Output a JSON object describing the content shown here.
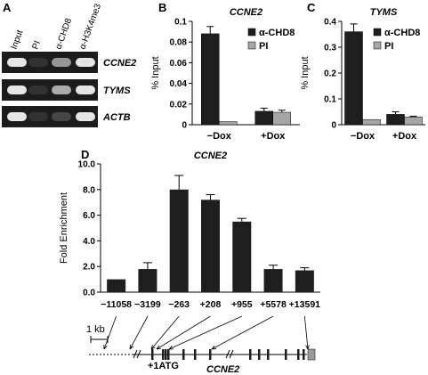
{
  "panel_labels": {
    "a": "A",
    "b": "B",
    "c": "C",
    "d": "D"
  },
  "gel": {
    "lanes": [
      "Input",
      "PI",
      "α-CHD8",
      "α-H3K4me3"
    ],
    "rows": [
      {
        "gene": "CCNE2",
        "intensity": [
          0.95,
          0.05,
          0.55,
          0.95
        ]
      },
      {
        "gene": "TYMS",
        "intensity": [
          0.95,
          0.05,
          0.65,
          0.95
        ]
      },
      {
        "gene": "ACTB",
        "intensity": [
          0.95,
          0.05,
          0.15,
          0.95
        ]
      }
    ]
  },
  "colors": {
    "chd8": "#1e1e1e",
    "pi": "#a6a6a6",
    "fold": "#1e1e1e",
    "exon": "#1e1e1e",
    "last_exon": "#9a9a9a"
  },
  "chart_data": [
    {
      "id": "B",
      "type": "bar",
      "title": "CCNE2",
      "ylabel": "% Input",
      "xlabel": "",
      "categories": [
        "−Dox",
        "+Dox"
      ],
      "ylim": [
        0,
        0.1
      ],
      "yticks": [
        "0",
        "0.02",
        "0.04",
        "0.06",
        "0.08",
        "0.1"
      ],
      "legend": "top-right",
      "series": [
        {
          "name": "α-CHD8",
          "values": [
            0.088,
            0.013
          ],
          "errors": [
            0.007,
            0.003
          ]
        },
        {
          "name": "PI",
          "values": [
            0.003,
            0.012
          ],
          "errors": [
            0,
            0.002
          ]
        }
      ]
    },
    {
      "id": "C",
      "type": "bar",
      "title": "TYMS",
      "ylabel": "% Input",
      "xlabel": "",
      "categories": [
        "−Dox",
        "+Dox"
      ],
      "ylim": [
        0,
        0.4
      ],
      "yticks": [
        "0",
        "0.1",
        "0.2",
        "0.3",
        "0.4"
      ],
      "legend": "top-right",
      "series": [
        {
          "name": "α-CHD8",
          "values": [
            0.36,
            0.04
          ],
          "errors": [
            0.03,
            0.01
          ]
        },
        {
          "name": "PI",
          "values": [
            0.02,
            0.03
          ],
          "errors": [
            0,
            0.003
          ]
        }
      ]
    },
    {
      "id": "D",
      "type": "bar",
      "title": "CCNE2",
      "ylabel": "Fold Enrichment",
      "xlabel": "",
      "categories": [
        "−11058",
        "−3199",
        "−263",
        "+208",
        "+955",
        "+5578",
        "+13591"
      ],
      "ylim": [
        0,
        10
      ],
      "yticks": [
        "0.0",
        "2.0",
        "4.0",
        "6.0",
        "8.0",
        "10.0"
      ],
      "series": [
        {
          "values": [
            1.0,
            1.8,
            8.0,
            7.2,
            5.5,
            1.8,
            1.7
          ],
          "errors": [
            0,
            0.5,
            1.1,
            0.4,
            0.25,
            0.3,
            0.2
          ]
        }
      ]
    }
  ],
  "gene_map": {
    "scale_label": "1 kb",
    "start_label": "+1ATG",
    "gene_label": "CCNE2"
  }
}
